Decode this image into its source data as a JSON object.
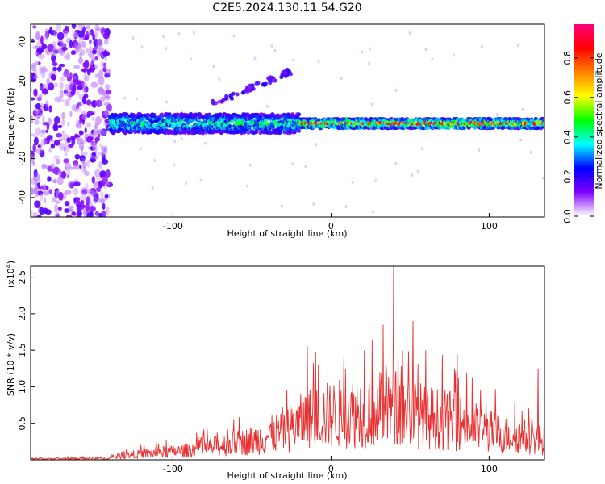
{
  "title": "C2E5.2024.130.11.54.G20",
  "chart_data": [
    {
      "type": "heatmap",
      "xlabel": "Height of straight line (km)",
      "ylabel": "Frequency (Hz)",
      "xlim": [
        -190,
        135
      ],
      "ylim": [
        -50,
        49
      ],
      "xticks": [
        -100,
        0,
        100
      ],
      "yticks": [
        -40,
        -20,
        0,
        20,
        40
      ],
      "colorbar": {
        "label": "Normalized spectral amplitude",
        "range": [
          0,
          0.97
        ],
        "ticks": [
          0.0,
          0.2,
          0.4,
          0.6,
          0.8
        ],
        "tick_labels": [
          "0.0",
          "0.2",
          "0.4",
          "0.6",
          "0.8"
        ],
        "colors": [
          "#ffffff",
          "#8000ff",
          "#0000ff",
          "#00ffff",
          "#00ff00",
          "#ffff00",
          "#ff8000",
          "#ff0000",
          "#ff0080"
        ]
      },
      "features": [
        {
          "name": "noise band",
          "x_range": [
            -190,
            -140
          ],
          "frequency_range": [
            -50,
            49
          ],
          "amplitude": 0.15
        },
        {
          "name": "main echo",
          "x_range": [
            -140,
            135
          ],
          "frequency_hz": -2,
          "amplitude_peak": 0.95
        },
        {
          "name": "rising trace",
          "x_range": [
            -75,
            -25
          ],
          "frequency_range": [
            8,
            25
          ],
          "amplitude": 0.3
        }
      ]
    },
    {
      "type": "line",
      "xlabel": "Height of straight line (km)",
      "ylabel": "SNR (10 * v/v)",
      "y_scale_label": "(x10",
      "y_scale_exp": "4",
      "xlim": [
        -190,
        135
      ],
      "ylim": [
        0,
        2.65
      ],
      "xticks": [
        -100,
        0,
        100
      ],
      "yticks": [
        0.5,
        1.0,
        1.5,
        2.0,
        2.5
      ],
      "ytick_labels": [
        "0.5",
        "1.0",
        "1.5",
        "2.0",
        "2.5"
      ],
      "series": [
        {
          "color": "#e83030",
          "envelope": [
            {
              "x": -190,
              "y": 0.02
            },
            {
              "x": -140,
              "y": 0.03
            },
            {
              "x": -130,
              "y": 0.1
            },
            {
              "x": -110,
              "y": 0.15
            },
            {
              "x": -90,
              "y": 0.2
            },
            {
              "x": -70,
              "y": 0.3
            },
            {
              "x": -50,
              "y": 0.4
            },
            {
              "x": -30,
              "y": 0.6
            },
            {
              "x": -15,
              "y": 0.85
            },
            {
              "x": 0,
              "y": 0.95
            },
            {
              "x": 15,
              "y": 1.0
            },
            {
              "x": 25,
              "y": 1.05
            },
            {
              "x": 40,
              "y": 1.1
            },
            {
              "x": 60,
              "y": 0.9
            },
            {
              "x": 80,
              "y": 0.8
            },
            {
              "x": 100,
              "y": 0.6
            },
            {
              "x": 120,
              "y": 0.5
            },
            {
              "x": 135,
              "y": 0.4
            }
          ],
          "peaks": [
            {
              "x": 39.5,
              "y": 2.65
            },
            {
              "x": 52,
              "y": 1.9
            },
            {
              "x": 33,
              "y": 1.85
            },
            {
              "x": 26,
              "y": 1.65
            },
            {
              "x": 21,
              "y": 1.5
            },
            {
              "x": -15,
              "y": 1.55
            },
            {
              "x": -8,
              "y": 1.3
            },
            {
              "x": 8,
              "y": 1.4
            },
            {
              "x": 60,
              "y": 1.5
            },
            {
              "x": 80,
              "y": 1.45
            },
            {
              "x": 131,
              "y": 1.25
            }
          ]
        }
      ]
    }
  ]
}
